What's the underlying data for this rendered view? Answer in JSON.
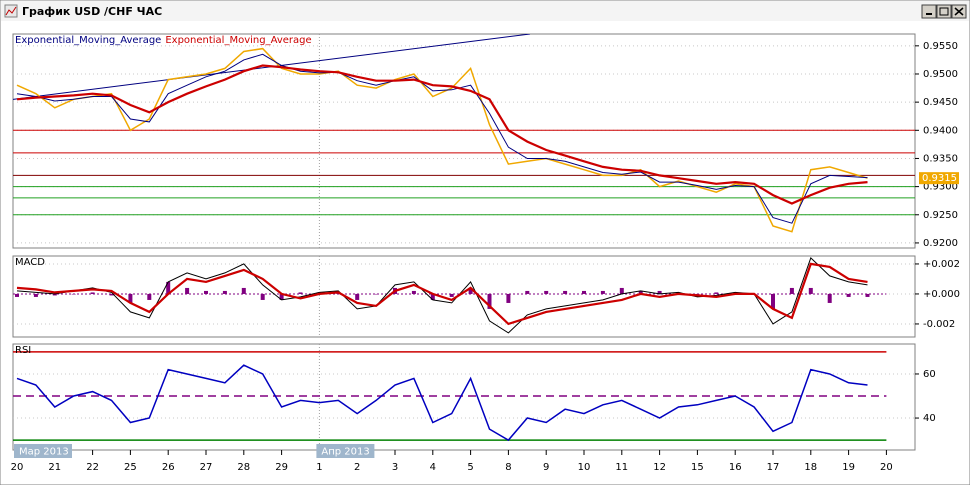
{
  "window": {
    "title": "График USD /CHF ЧАС"
  },
  "chart_data": [
    {
      "type": "line",
      "categories": [
        "20",
        null,
        "21",
        null,
        "22",
        null,
        "25",
        null,
        "26",
        null,
        "27",
        null,
        "28",
        null,
        "29",
        null,
        "1",
        null,
        "2",
        null,
        "3",
        null,
        "4",
        null,
        "5",
        null,
        "8",
        null,
        "9",
        null,
        "10",
        null,
        "11",
        null,
        "12",
        null,
        "15",
        null,
        "16",
        null,
        "17",
        null,
        "18",
        null,
        "19",
        null,
        "20",
        null
      ],
      "months": [
        "Мар 2013",
        "Апр 2013"
      ],
      "values": [
        0.948,
        0.9465,
        0.944,
        0.9455,
        0.946,
        0.9465,
        0.94,
        0.942,
        0.949,
        0.9495,
        0.95,
        0.951,
        0.954,
        0.9545,
        0.951,
        0.95,
        0.95,
        0.9505,
        0.948,
        0.9475,
        0.949,
        0.95,
        0.946,
        0.9475,
        0.951,
        0.941,
        0.934,
        0.9345,
        0.935,
        0.934,
        0.933,
        0.932,
        0.932,
        0.933,
        0.93,
        0.931,
        0.93,
        0.929,
        0.9305,
        0.93,
        0.923,
        0.922,
        0.933,
        0.9335,
        0.9325,
        0.9315,
        null,
        null
      ],
      "color": "#f0a800",
      "series": [
        {
          "name": "Exponential_Moving_Average",
          "color": "#000080",
          "values": [
            0.9465,
            0.946,
            0.9452,
            0.9455,
            0.946,
            0.946,
            0.942,
            0.9415,
            0.9465,
            0.948,
            0.9495,
            0.9505,
            0.9525,
            0.9535,
            0.9515,
            0.9505,
            0.9502,
            0.9503,
            0.9488,
            0.948,
            0.9488,
            0.9495,
            0.947,
            0.9472,
            0.948,
            0.943,
            0.937,
            0.935,
            0.935,
            0.9345,
            0.9335,
            0.9325,
            0.9322,
            0.9326,
            0.9308,
            0.9308,
            0.9302,
            0.9295,
            0.9302,
            0.93,
            0.9245,
            0.9235,
            0.9305,
            0.932,
            0.9318,
            0.9316,
            null,
            null
          ]
        },
        {
          "name": "Exponential_Moving_Average",
          "color": "#cc0000",
          "values": [
            0.9455,
            0.9458,
            0.946,
            0.9462,
            0.9465,
            0.9462,
            0.9445,
            0.9432,
            0.945,
            0.9465,
            0.9478,
            0.949,
            0.9505,
            0.9515,
            0.9512,
            0.9508,
            0.9505,
            0.9503,
            0.9495,
            0.9488,
            0.9488,
            0.949,
            0.948,
            0.9478,
            0.947,
            0.9455,
            0.94,
            0.938,
            0.9365,
            0.9355,
            0.9345,
            0.9335,
            0.933,
            0.9328,
            0.932,
            0.9315,
            0.931,
            0.9305,
            0.9308,
            0.9305,
            0.9285,
            0.927,
            0.9285,
            0.9298,
            0.9305,
            0.9308,
            null,
            null
          ]
        }
      ],
      "levels": [
        {
          "value": 0.94,
          "color": "#cc0000"
        },
        {
          "value": 0.936,
          "color": "#cc0000"
        },
        {
          "value": 0.932,
          "color": "#800000"
        },
        {
          "value": 0.93,
          "color": "#20a020"
        },
        {
          "value": 0.928,
          "color": "#20a020"
        },
        {
          "value": 0.925,
          "color": "#20a020"
        }
      ],
      "trendline": [
        0.9455,
        0.9571
      ],
      "last_price": 0.9315,
      "ylim": [
        0.9191,
        0.9571
      ],
      "yticks": [
        {
          "value": 0.92,
          "label": "0.9200"
        },
        {
          "value": 0.925,
          "label": "0.9250"
        },
        {
          "value": 0.93,
          "label": "0.9300"
        },
        {
          "value": 0.935,
          "label": "0.9350"
        },
        {
          "value": 0.94,
          "label": "0.9400"
        },
        {
          "value": 0.945,
          "label": "0.9450"
        },
        {
          "value": 0.95,
          "label": "0.9500"
        },
        {
          "value": 0.955,
          "label": "0.9550"
        }
      ],
      "grid": true
    },
    {
      "type": "line",
      "title": "MACD",
      "histogram": {
        "color": "#800080",
        "values": [
          -0.0002,
          -0.0002,
          -0.0001,
          0.0,
          0.0001,
          -0.0001,
          -0.0006,
          -0.0004,
          0.0008,
          0.0004,
          0.0002,
          0.0002,
          0.0004,
          -0.0004,
          -0.0004,
          0.0001,
          0.0001,
          0.0001,
          -0.0004,
          0.0,
          0.0004,
          0.0002,
          -0.0004,
          -0.0002,
          0.0004,
          -0.001,
          -0.0006,
          0.0002,
          0.0002,
          0.0002,
          0.0002,
          0.0002,
          0.0004,
          0.0002,
          0.0002,
          0.0001,
          -0.0001,
          0.0001,
          0.0001,
          0.0,
          -0.001,
          0.0004,
          0.0004,
          -0.0006,
          -0.0002,
          -0.0002,
          null,
          null
        ]
      },
      "series": [
        {
          "color": "#000000",
          "values": [
            0.0002,
            0.0001,
            0.0,
            0.0002,
            0.0004,
            0.0001,
            -0.0012,
            -0.0016,
            0.0008,
            0.0014,
            0.001,
            0.0014,
            0.002,
            0.0006,
            -0.0004,
            -0.0002,
            0.0001,
            0.0002,
            -0.001,
            -0.0008,
            0.0006,
            0.0008,
            -0.0004,
            -0.0006,
            0.0008,
            -0.0018,
            -0.0026,
            -0.0014,
            -0.001,
            -0.0008,
            -0.0006,
            -0.0004,
            0.0,
            0.0002,
            0.0,
            0.0001,
            -0.0002,
            -0.0001,
            0.0001,
            0.0,
            -0.002,
            -0.0012,
            0.0024,
            0.0012,
            0.0008,
            0.0006,
            null,
            null
          ]
        },
        {
          "color": "#cc0000",
          "values": [
            0.0004,
            0.0003,
            0.0001,
            0.0002,
            0.0003,
            0.0002,
            -0.0006,
            -0.0012,
            0.0,
            0.001,
            0.0008,
            0.0012,
            0.0016,
            0.001,
            0.0,
            -0.0003,
            0.0,
            0.0001,
            -0.0006,
            -0.0008,
            0.0002,
            0.0006,
            0.0,
            -0.0004,
            0.0004,
            -0.0008,
            -0.002,
            -0.0016,
            -0.0012,
            -0.001,
            -0.0008,
            -0.0006,
            -0.0004,
            0.0,
            -0.0002,
            0.0,
            -0.0001,
            -0.0002,
            0.0,
            0.0,
            -0.001,
            -0.0016,
            0.002,
            0.0018,
            0.001,
            0.0008,
            null,
            null
          ]
        }
      ],
      "ylim": [
        -0.00287,
        0.00253
      ],
      "yticks": [
        {
          "value": -0.002,
          "label": "-0.002"
        },
        {
          "value": 0,
          "label": "+0.000"
        },
        {
          "value": 0.002,
          "label": "+0.002"
        }
      ],
      "grid": true
    },
    {
      "type": "line",
      "title": "RSI",
      "values": [
        58,
        55,
        45,
        50,
        52,
        48,
        38,
        40,
        62,
        60,
        58,
        56,
        64,
        60,
        45,
        48,
        47,
        48,
        42,
        48,
        55,
        58,
        38,
        42,
        58,
        35,
        30,
        40,
        38,
        44,
        42,
        46,
        48,
        44,
        40,
        45,
        46,
        48,
        50,
        45,
        34,
        38,
        62,
        60,
        56,
        55,
        null,
        null
      ],
      "color": "#0000c0",
      "levels": [
        {
          "value": 70,
          "color": "#cc0000"
        },
        {
          "value": 50,
          "color": "#800080",
          "style": "dashed"
        },
        {
          "value": 30,
          "color": "#008000"
        }
      ],
      "ylim": [
        25.5,
        73.6
      ],
      "yticks": [
        40,
        60
      ],
      "grid": true
    }
  ]
}
